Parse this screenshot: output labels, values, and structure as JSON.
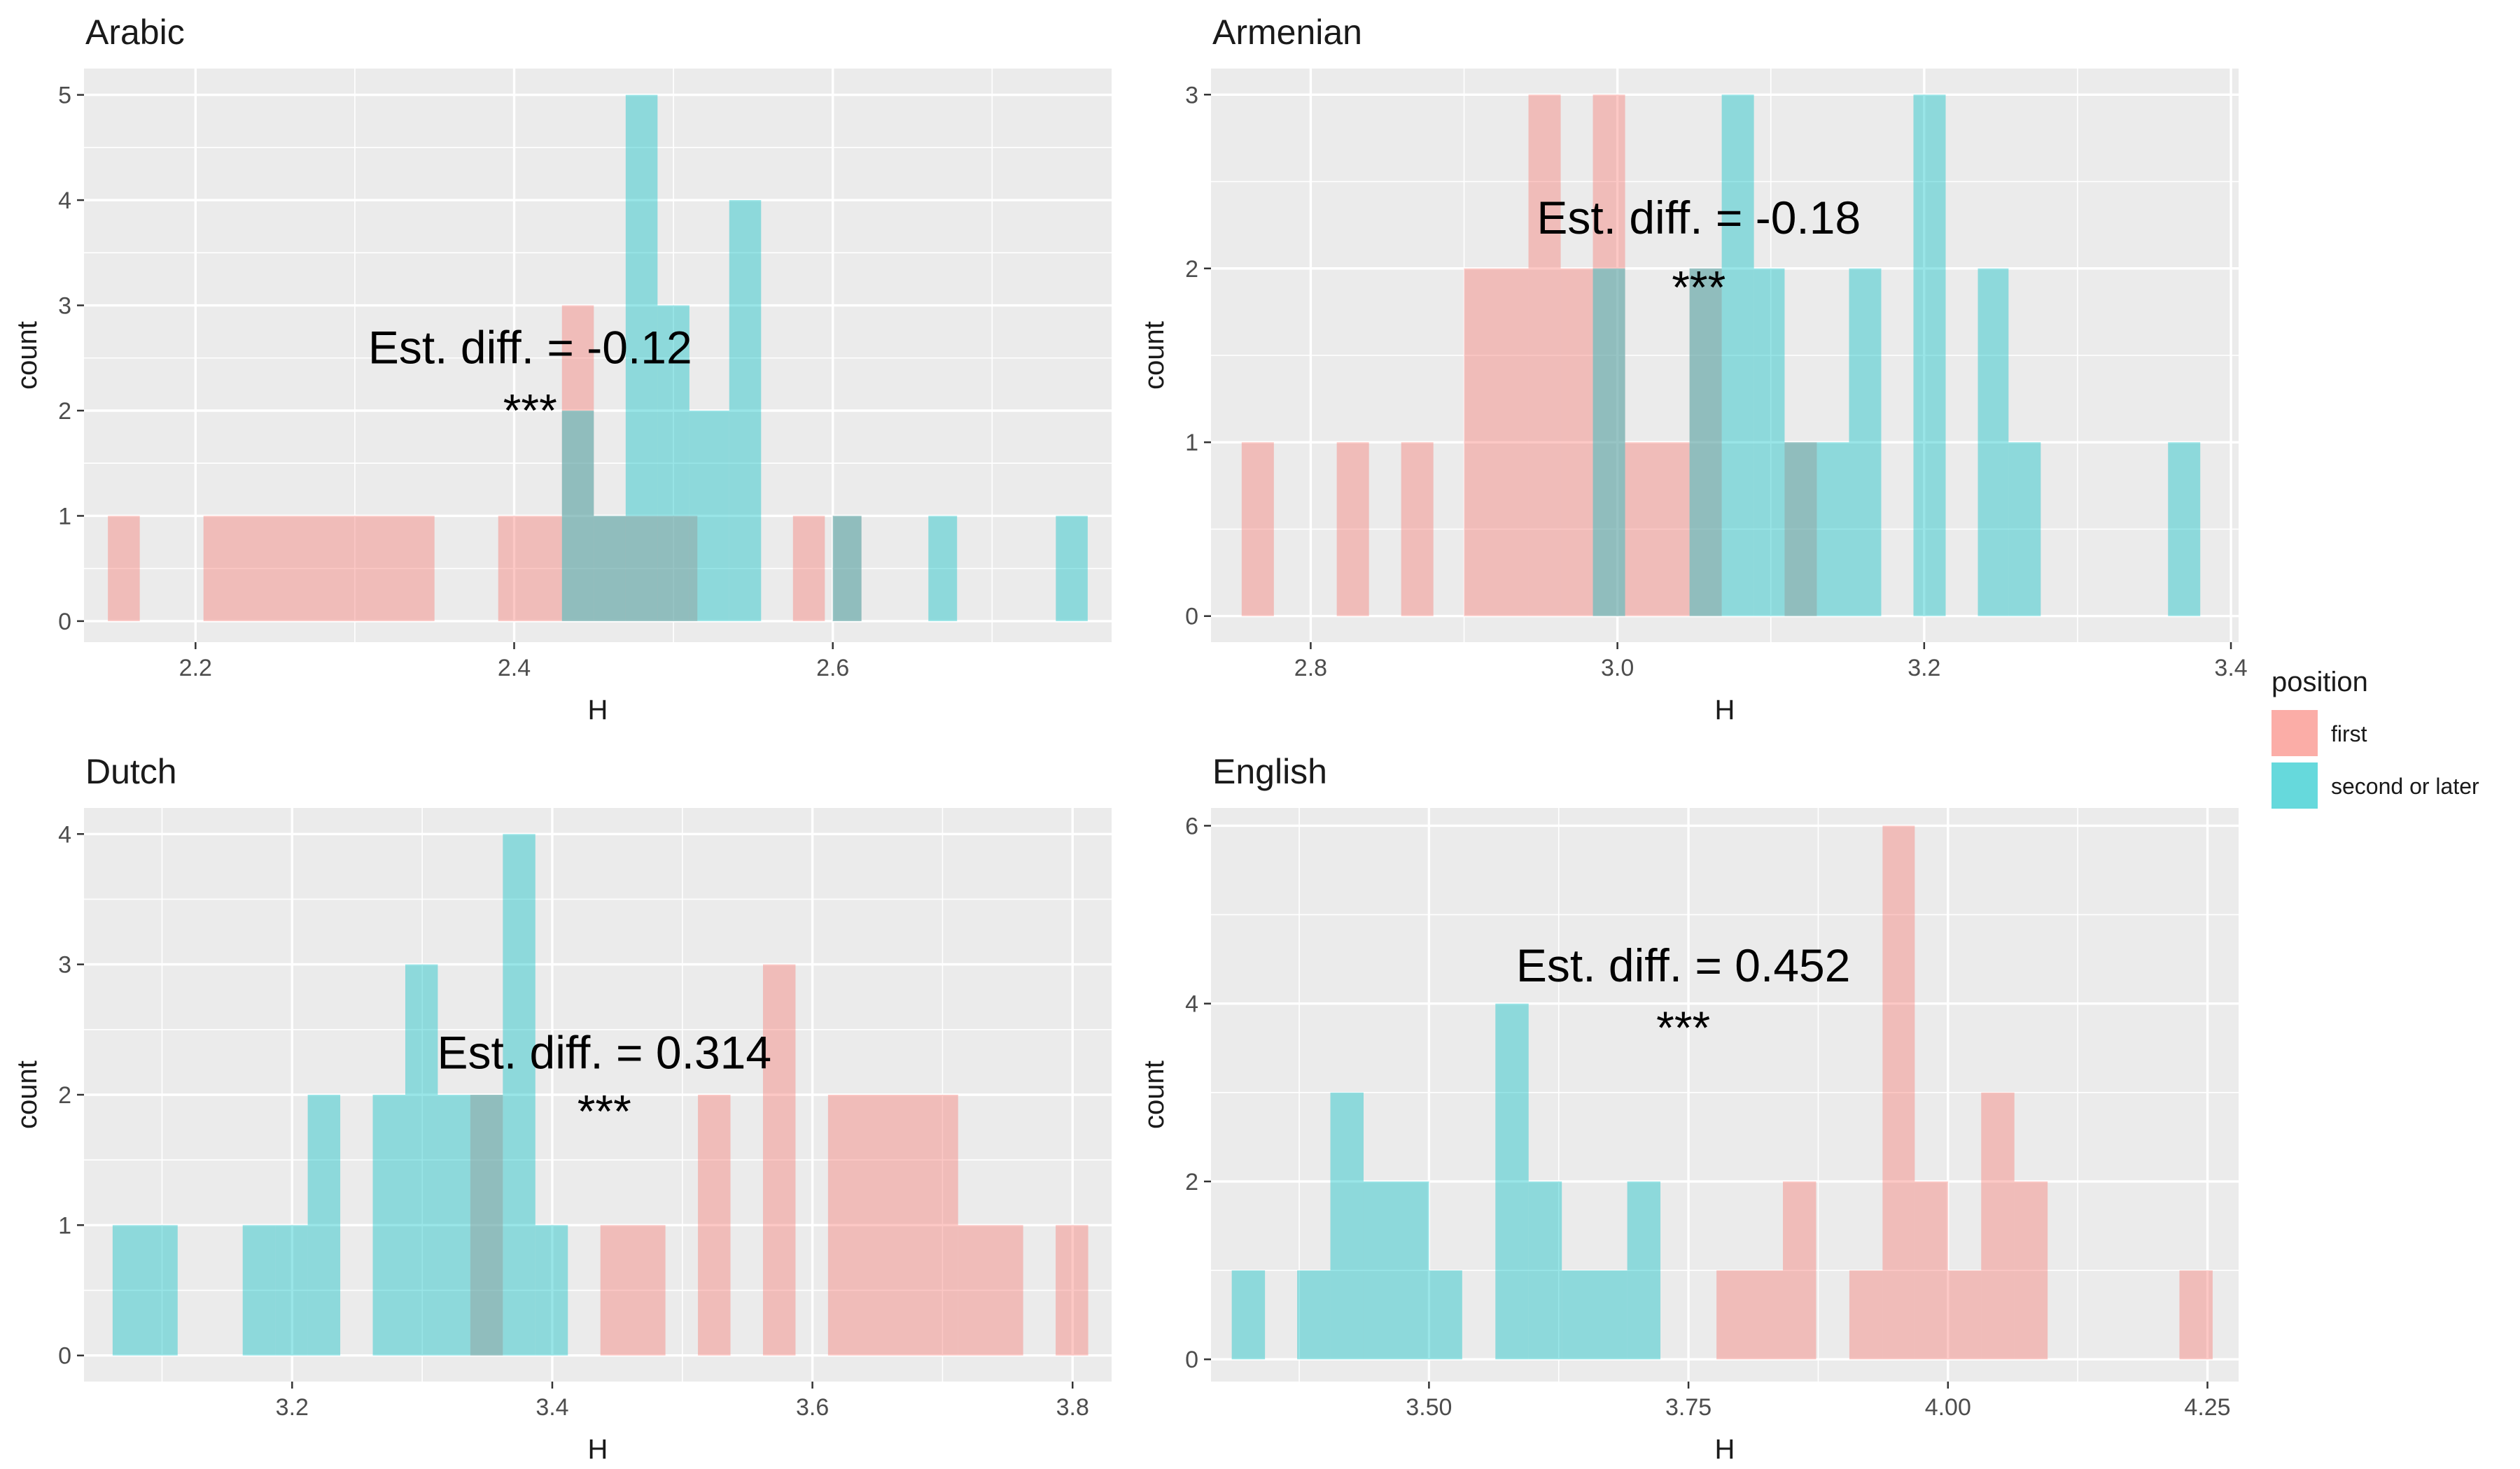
{
  "chart_data": [
    {
      "type": "histogram",
      "title": "Arabic",
      "xlabel": "H",
      "ylabel": "count",
      "xlim": [
        2.13,
        2.775
      ],
      "ylim": [
        -0.2,
        5.25
      ],
      "xticks": [
        2.2,
        2.4,
        2.6
      ],
      "xtick_labels": [
        "2.2",
        "2.4",
        "2.6"
      ],
      "yticks": [
        0,
        1,
        2,
        3,
        4,
        5
      ],
      "ytick_labels": [
        "0",
        "1",
        "2",
        "3",
        "4",
        "5"
      ],
      "annotation": "Est. diff. = -0.12",
      "significance": "***",
      "annotation_pos": [
        2.41,
        2.45
      ],
      "sig_pos": [
        2.41,
        1.85
      ],
      "series": [
        {
          "name": "first",
          "color": "#F8766D",
          "bins": [
            {
              "x0": 2.145,
              "x1": 2.165,
              "count": 1
            },
            {
              "x0": 2.205,
              "x1": 2.35,
              "count": 1
            },
            {
              "x0": 2.39,
              "x1": 2.43,
              "count": 1
            },
            {
              "x0": 2.43,
              "x1": 2.45,
              "count": 3
            },
            {
              "x0": 2.45,
              "x1": 2.515,
              "count": 1
            },
            {
              "x0": 2.575,
              "x1": 2.595,
              "count": 1
            },
            {
              "x0": 2.6,
              "x1": 2.618,
              "count": 1
            }
          ]
        },
        {
          "name": "second or later",
          "color": "#00BFC4",
          "bins": [
            {
              "x0": 2.43,
              "x1": 2.45,
              "count": 2
            },
            {
              "x0": 2.45,
              "x1": 2.47,
              "count": 1
            },
            {
              "x0": 2.47,
              "x1": 2.49,
              "count": 5
            },
            {
              "x0": 2.49,
              "x1": 2.51,
              "count": 3
            },
            {
              "x0": 2.51,
              "x1": 2.535,
              "count": 2
            },
            {
              "x0": 2.535,
              "x1": 2.555,
              "count": 4
            },
            {
              "x0": 2.6,
              "x1": 2.618,
              "count": 1
            },
            {
              "x0": 2.66,
              "x1": 2.678,
              "count": 1
            },
            {
              "x0": 2.74,
              "x1": 2.76,
              "count": 1
            }
          ]
        }
      ]
    },
    {
      "type": "histogram",
      "title": "Armenian",
      "xlabel": "H",
      "ylabel": "count",
      "xlim": [
        2.735,
        3.405
      ],
      "ylim": [
        -0.15,
        3.15
      ],
      "xticks": [
        2.8,
        3.0,
        3.2,
        3.4
      ],
      "xtick_labels": [
        "2.8",
        "3.0",
        "3.2",
        "3.4"
      ],
      "yticks": [
        0,
        1,
        2,
        3
      ],
      "ytick_labels": [
        "0",
        "1",
        "2",
        "3"
      ],
      "annotation": "Est. diff. = -0.18",
      "significance": "***",
      "annotation_pos": [
        3.053,
        2.2
      ],
      "sig_pos": [
        3.053,
        1.8
      ],
      "series": [
        {
          "name": "first",
          "color": "#F8766D",
          "bins": [
            {
              "x0": 2.755,
              "x1": 2.776,
              "count": 1
            },
            {
              "x0": 2.817,
              "x1": 2.838,
              "count": 1
            },
            {
              "x0": 2.859,
              "x1": 2.88,
              "count": 1
            },
            {
              "x0": 2.9,
              "x1": 2.942,
              "count": 2
            },
            {
              "x0": 2.942,
              "x1": 2.963,
              "count": 3
            },
            {
              "x0": 2.963,
              "x1": 2.984,
              "count": 2
            },
            {
              "x0": 2.984,
              "x1": 3.005,
              "count": 3
            },
            {
              "x0": 3.005,
              "x1": 3.047,
              "count": 1
            },
            {
              "x0": 3.047,
              "x1": 3.068,
              "count": 2
            },
            {
              "x0": 3.109,
              "x1": 3.13,
              "count": 1
            }
          ]
        },
        {
          "name": "second or later",
          "color": "#00BFC4",
          "bins": [
            {
              "x0": 2.984,
              "x1": 3.005,
              "count": 2
            },
            {
              "x0": 3.047,
              "x1": 3.068,
              "count": 2
            },
            {
              "x0": 3.068,
              "x1": 3.089,
              "count": 3
            },
            {
              "x0": 3.089,
              "x1": 3.109,
              "count": 2
            },
            {
              "x0": 3.109,
              "x1": 3.13,
              "count": 1
            },
            {
              "x0": 3.13,
              "x1": 3.151,
              "count": 1
            },
            {
              "x0": 3.151,
              "x1": 3.172,
              "count": 2
            },
            {
              "x0": 3.193,
              "x1": 3.214,
              "count": 3
            },
            {
              "x0": 3.235,
              "x1": 3.255,
              "count": 2
            },
            {
              "x0": 3.255,
              "x1": 3.276,
              "count": 1
            },
            {
              "x0": 3.359,
              "x1": 3.38,
              "count": 1
            }
          ]
        }
      ]
    },
    {
      "type": "histogram",
      "title": "Dutch",
      "xlabel": "H",
      "ylabel": "count",
      "xlim": [
        3.04,
        3.83
      ],
      "ylim": [
        -0.2,
        4.2
      ],
      "xticks": [
        3.2,
        3.4,
        3.6,
        3.8
      ],
      "xtick_labels": [
        "3.2",
        "3.4",
        "3.6",
        "3.8"
      ],
      "yticks": [
        0,
        1,
        2,
        3,
        4
      ],
      "ytick_labels": [
        "0",
        "1",
        "2",
        "3",
        "4"
      ],
      "annotation": "Est. diff. = 0.314",
      "significance": "***",
      "annotation_pos": [
        3.44,
        2.2
      ],
      "sig_pos": [
        3.44,
        1.75
      ],
      "series": [
        {
          "name": "first",
          "color": "#F8766D",
          "bins": [
            {
              "x0": 3.337,
              "x1": 3.362,
              "count": 2
            },
            {
              "x0": 3.437,
              "x1": 3.487,
              "count": 1
            },
            {
              "x0": 3.512,
              "x1": 3.537,
              "count": 2
            },
            {
              "x0": 3.562,
              "x1": 3.587,
              "count": 3
            },
            {
              "x0": 3.612,
              "x1": 3.712,
              "count": 2
            },
            {
              "x0": 3.712,
              "x1": 3.762,
              "count": 1
            },
            {
              "x0": 3.787,
              "x1": 3.812,
              "count": 1
            }
          ]
        },
        {
          "name": "second or later",
          "color": "#00BFC4",
          "bins": [
            {
              "x0": 3.062,
              "x1": 3.112,
              "count": 1
            },
            {
              "x0": 3.162,
              "x1": 3.187,
              "count": 1
            },
            {
              "x0": 3.187,
              "x1": 3.212,
              "count": 1
            },
            {
              "x0": 3.212,
              "x1": 3.237,
              "count": 2
            },
            {
              "x0": 3.262,
              "x1": 3.287,
              "count": 2
            },
            {
              "x0": 3.287,
              "x1": 3.312,
              "count": 3
            },
            {
              "x0": 3.312,
              "x1": 3.337,
              "count": 2
            },
            {
              "x0": 3.337,
              "x1": 3.362,
              "count": 2
            },
            {
              "x0": 3.362,
              "x1": 3.387,
              "count": 4
            },
            {
              "x0": 3.387,
              "x1": 3.412,
              "count": 1
            }
          ]
        }
      ]
    },
    {
      "type": "histogram",
      "title": "English",
      "xlabel": "H",
      "ylabel": "count",
      "xlim": [
        3.29,
        4.28
      ],
      "ylim": [
        -0.25,
        6.2
      ],
      "xticks": [
        3.5,
        3.75,
        4.0,
        4.25
      ],
      "xtick_labels": [
        "3.50",
        "3.75",
        "4.00",
        "4.25"
      ],
      "yticks": [
        0,
        2,
        4,
        6
      ],
      "ytick_labels": [
        "0",
        "2",
        "4",
        "6"
      ],
      "annotation": "Est. diff. = 0.452",
      "significance": "***",
      "annotation_pos": [
        3.745,
        4.25
      ],
      "sig_pos": [
        3.745,
        3.55
      ],
      "series": [
        {
          "name": "first",
          "color": "#F8766D",
          "bins": [
            {
              "x0": 3.777,
              "x1": 3.841,
              "count": 1
            },
            {
              "x0": 3.841,
              "x1": 3.873,
              "count": 2
            },
            {
              "x0": 3.905,
              "x1": 3.937,
              "count": 1
            },
            {
              "x0": 3.937,
              "x1": 3.968,
              "count": 6
            },
            {
              "x0": 3.968,
              "x1": 4.0,
              "count": 2
            },
            {
              "x0": 4.0,
              "x1": 4.032,
              "count": 1
            },
            {
              "x0": 4.032,
              "x1": 4.064,
              "count": 3
            },
            {
              "x0": 4.064,
              "x1": 4.096,
              "count": 2
            },
            {
              "x0": 4.223,
              "x1": 4.255,
              "count": 1
            }
          ]
        },
        {
          "name": "second or later",
          "color": "#00BFC4",
          "bins": [
            {
              "x0": 3.31,
              "x1": 3.342,
              "count": 1
            },
            {
              "x0": 3.373,
              "x1": 3.405,
              "count": 1
            },
            {
              "x0": 3.405,
              "x1": 3.437,
              "count": 3
            },
            {
              "x0": 3.437,
              "x1": 3.5,
              "count": 2
            },
            {
              "x0": 3.5,
              "x1": 3.532,
              "count": 1
            },
            {
              "x0": 3.564,
              "x1": 3.596,
              "count": 4
            },
            {
              "x0": 3.596,
              "x1": 3.628,
              "count": 2
            },
            {
              "x0": 3.628,
              "x1": 3.691,
              "count": 1
            },
            {
              "x0": 3.691,
              "x1": 3.723,
              "count": 2
            }
          ]
        }
      ]
    }
  ],
  "legend": {
    "title": "position",
    "items": [
      {
        "label": "first",
        "color": "#F8766D"
      },
      {
        "label": "second or later",
        "color": "#00BFC4"
      }
    ]
  },
  "style": {
    "panel_bg": "#EBEBEB",
    "grid_major": "#FFFFFF",
    "bar_opacity": 0.4
  }
}
